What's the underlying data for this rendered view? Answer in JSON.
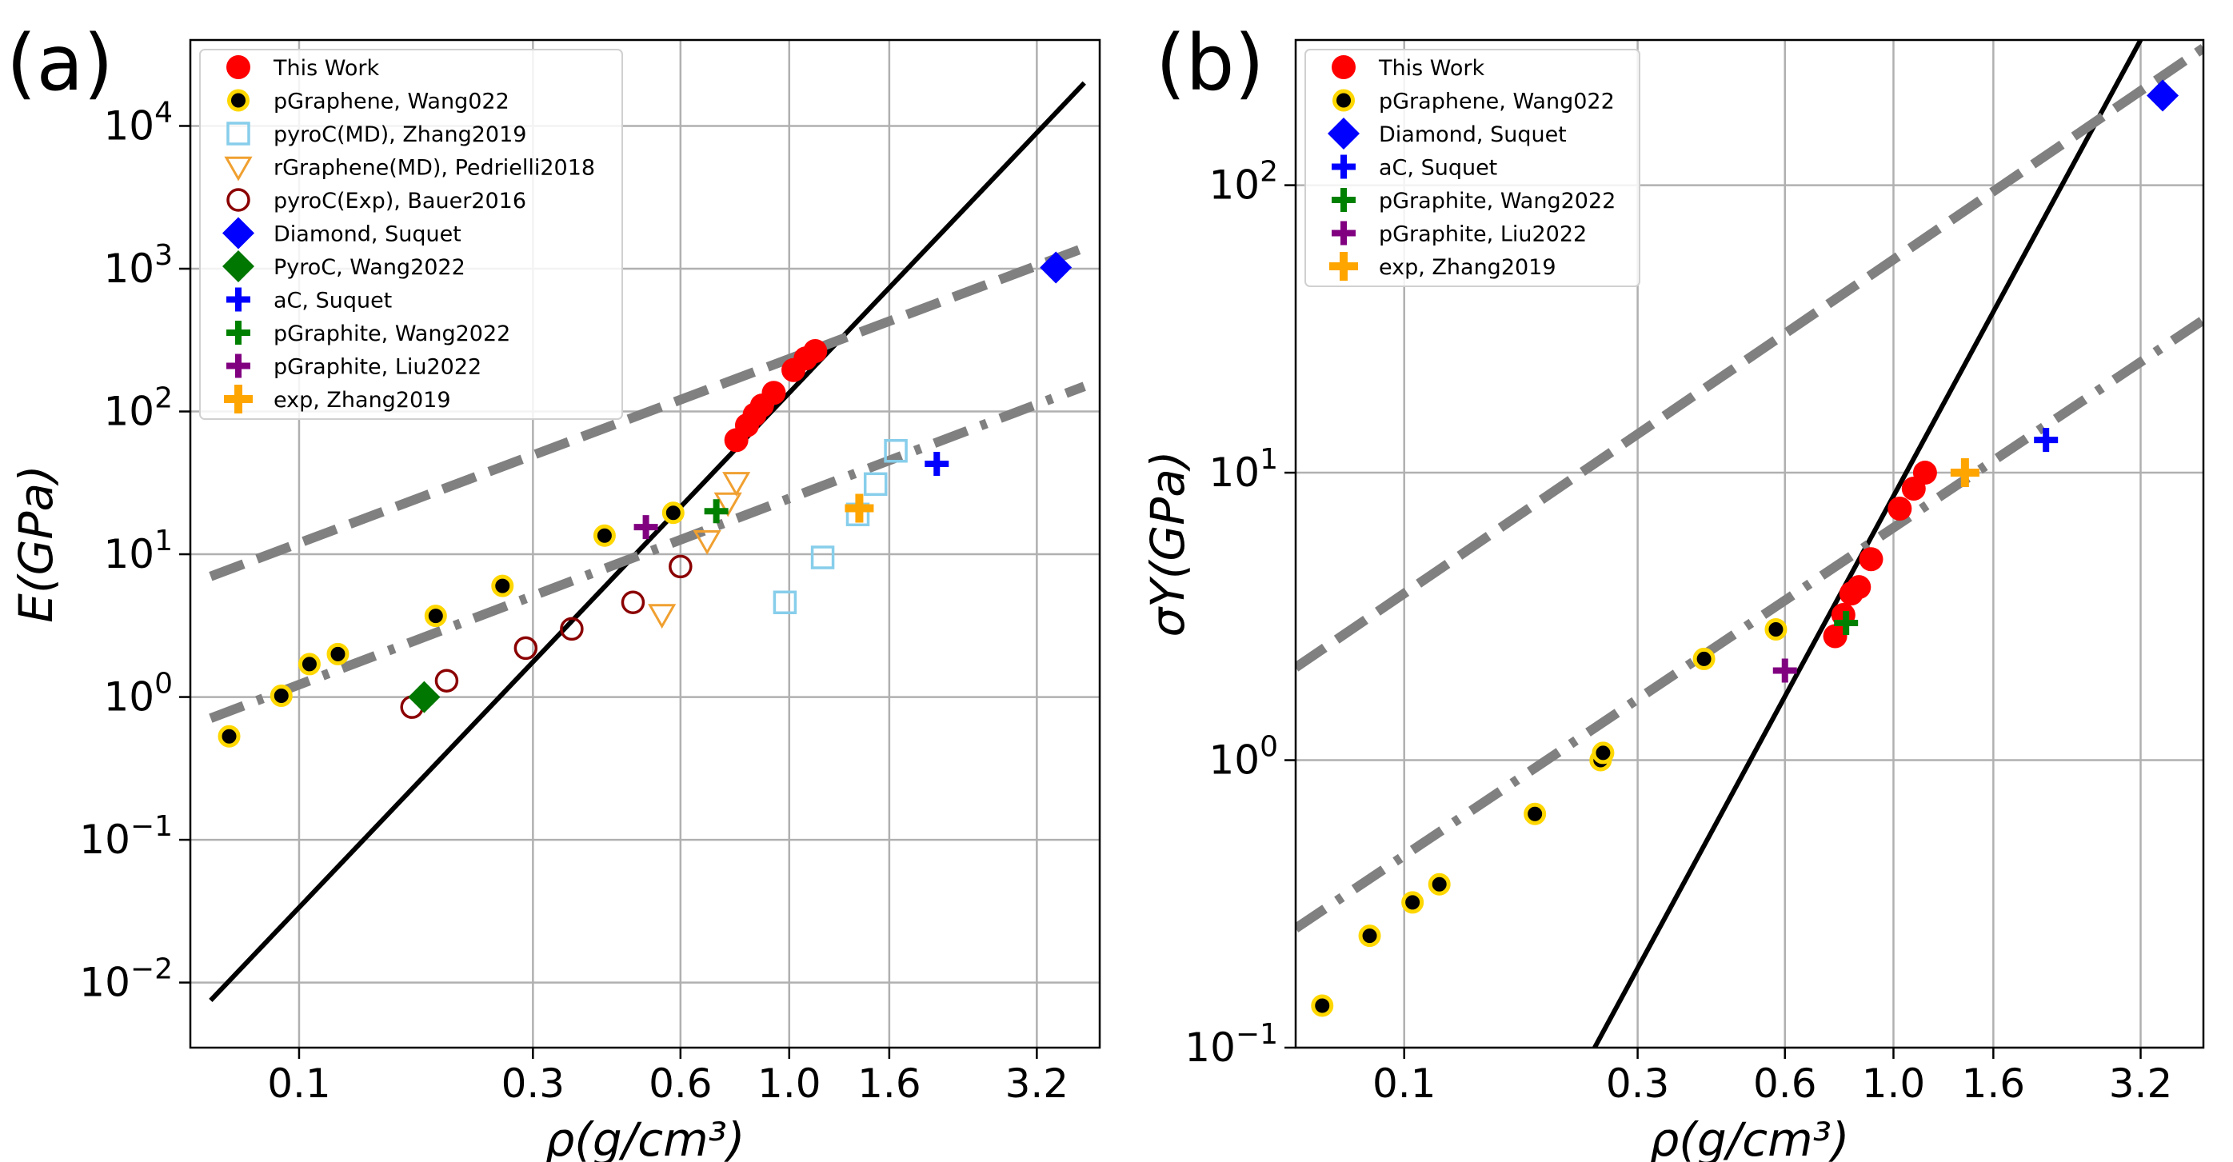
{
  "colors": {
    "this_work": "#ff0000",
    "pgraphene_fill": "#000000",
    "pgraphene_edge": "#ffd700",
    "pyroc_md": "#87ceeb",
    "rgraphene_md": "#f0a030",
    "pyroc_exp": "#8b0000",
    "diamond": "#0000ff",
    "pyroc_wang": "#007700",
    "ac_suquet": "#0000ff",
    "pgraphite_wang": "#008000",
    "pgraphite_liu": "#800080",
    "exp_zhang": "#ffa500",
    "fit": "#808080",
    "grid": "#b0b0b0"
  },
  "chart_data": [
    {
      "panel_label": "(a)",
      "type": "scatter",
      "xscale": "log",
      "yscale": "log",
      "xlim": [
        0.06,
        4.3
      ],
      "ylim": [
        0.0035,
        40000
      ],
      "xlabel": "ρ(g/cm³)",
      "ylabel": "E(GPa)",
      "grid": true,
      "xticks": [
        {
          "value": 0.1,
          "label": "0.1"
        },
        {
          "value": 0.3,
          "label": "0.3"
        },
        {
          "value": 0.6,
          "label": "0.6"
        },
        {
          "value": 1.0,
          "label": "1.0"
        },
        {
          "value": 1.6,
          "label": "1.6"
        },
        {
          "value": 3.2,
          "label": "3.2"
        }
      ],
      "yticks": [
        {
          "value": 0.01,
          "base": "10",
          "exp": "−2"
        },
        {
          "value": 0.1,
          "base": "10",
          "exp": "−1"
        },
        {
          "value": 1,
          "base": "10",
          "exp": "0"
        },
        {
          "value": 10,
          "base": "10",
          "exp": "1"
        },
        {
          "value": 100,
          "base": "10",
          "exp": "2"
        },
        {
          "value": 1000,
          "base": "10",
          "exp": "3"
        },
        {
          "value": 10000,
          "base": "10",
          "exp": "4"
        }
      ],
      "legend_position": "upper-left",
      "series": [
        {
          "name": "This Work",
          "marker": "circle",
          "color_key": "this_work",
          "x": [
            0.78,
            0.82,
            0.85,
            0.88,
            0.93,
            1.02,
            1.08,
            1.13
          ],
          "y": [
            63,
            80,
            95,
            110,
            135,
            195,
            235,
            265
          ]
        },
        {
          "name": "pGraphene, Wang022",
          "marker": "circle-edged",
          "color_key": "pgraphene_fill",
          "x": [
            0.072,
            0.092,
            0.105,
            0.12,
            0.19,
            0.26,
            0.42,
            0.58
          ],
          "y": [
            0.53,
            1.02,
            1.7,
            2.0,
            3.7,
            6.0,
            13.5,
            19.5
          ]
        },
        {
          "name": "pyroC(MD), Zhang2019",
          "marker": "square-open",
          "color_key": "pyroc_md",
          "x": [
            0.98,
            1.17,
            1.38,
            1.5,
            1.65
          ],
          "y": [
            4.6,
            9.5,
            19,
            31,
            53
          ]
        },
        {
          "name": "rGraphene(MD), Pedrielli2018",
          "marker": "triangle-down-open",
          "color_key": "rgraphene_md",
          "x": [
            0.55,
            0.68,
            0.75,
            0.78
          ],
          "y": [
            3.8,
            12.5,
            23,
            32
          ]
        },
        {
          "name": "pyroC(Exp), Bauer2016",
          "marker": "circle-open",
          "color_key": "pyroc_exp",
          "x": [
            0.17,
            0.2,
            0.29,
            0.36,
            0.48,
            0.6
          ],
          "y": [
            0.85,
            1.3,
            2.2,
            3.0,
            4.6,
            8.2
          ]
        },
        {
          "name": "Diamond, Suquet",
          "marker": "diamond",
          "color_key": "diamond",
          "x": [
            3.5
          ],
          "y": [
            1020
          ]
        },
        {
          "name": "PyroC, Wang2022",
          "marker": "diamond",
          "color_key": "pyroc_wang",
          "x": [
            0.18
          ],
          "y": [
            1.0
          ]
        },
        {
          "name": "aC, Suquet",
          "marker": "plus",
          "color_key": "ac_suquet",
          "x": [
            2.0
          ],
          "y": [
            43
          ]
        },
        {
          "name": "pGraphite, Wang2022",
          "marker": "plus",
          "color_key": "pgraphite_wang",
          "x": [
            0.71
          ],
          "y": [
            20
          ]
        },
        {
          "name": "pGraphite, Liu2022",
          "marker": "plus",
          "color_key": "pgraphite_liu",
          "x": [
            0.51
          ],
          "y": [
            15.5
          ]
        },
        {
          "name": "exp, Zhang2019",
          "marker": "plus-large",
          "color_key": "exp_zhang",
          "x": [
            1.39
          ],
          "y": [
            21
          ]
        }
      ],
      "fit_lines": [
        {
          "style": "solid",
          "color_key": "pgraphene_fill",
          "x": [
            0.066,
            4.0
          ],
          "y": [
            0.0075,
            20000
          ]
        },
        {
          "style": "dashed",
          "color_key": "fit",
          "x": [
            0.066,
            4.0
          ],
          "y": [
            7,
            1400
          ]
        },
        {
          "style": "dashdot",
          "color_key": "fit",
          "x": [
            0.066,
            4.0
          ],
          "y": [
            0.71,
            150
          ]
        }
      ]
    },
    {
      "panel_label": "(b)",
      "type": "scatter",
      "xscale": "log",
      "yscale": "log",
      "xlim": [
        0.06,
        4.3
      ],
      "ylim": [
        0.1,
        320
      ],
      "xlabel": "ρ(g/cm³)",
      "ylabel": "σY(GPa)",
      "grid": true,
      "xticks": [
        {
          "value": 0.1,
          "label": "0.1"
        },
        {
          "value": 0.3,
          "label": "0.3"
        },
        {
          "value": 0.6,
          "label": "0.6"
        },
        {
          "value": 1.0,
          "label": "1.0"
        },
        {
          "value": 1.6,
          "label": "1.6"
        },
        {
          "value": 3.2,
          "label": "3.2"
        }
      ],
      "yticks": [
        {
          "value": 0.1,
          "base": "10",
          "exp": "−1"
        },
        {
          "value": 1,
          "base": "10",
          "exp": "0"
        },
        {
          "value": 10,
          "base": "10",
          "exp": "1"
        },
        {
          "value": 100,
          "base": "10",
          "exp": "2"
        }
      ],
      "legend_position": "upper-left",
      "series": [
        {
          "name": "This Work",
          "marker": "circle",
          "color_key": "this_work",
          "x": [
            0.76,
            0.79,
            0.82,
            0.85,
            0.9,
            1.03,
            1.1,
            1.16
          ],
          "y": [
            2.7,
            3.2,
            3.8,
            4.0,
            5.0,
            7.5,
            8.8,
            10
          ]
        },
        {
          "name": "pGraphene, Wang022",
          "marker": "circle-edged",
          "color_key": "pgraphene_fill",
          "x": [
            0.068,
            0.085,
            0.104,
            0.118,
            0.185,
            0.252,
            0.255,
            0.41,
            0.575
          ],
          "y": [
            0.14,
            0.245,
            0.32,
            0.37,
            0.65,
            1.0,
            1.06,
            2.25,
            2.85
          ]
        },
        {
          "name": "Diamond, Suquet",
          "marker": "diamond",
          "color_key": "diamond",
          "x": [
            3.55
          ],
          "y": [
            205
          ]
        },
        {
          "name": "aC, Suquet",
          "marker": "plus",
          "color_key": "ac_suquet",
          "x": [
            2.05
          ],
          "y": [
            13
          ]
        },
        {
          "name": "pGraphite, Wang2022",
          "marker": "plus",
          "color_key": "pgraphite_wang",
          "x": [
            0.8
          ],
          "y": [
            3.0
          ]
        },
        {
          "name": "pGraphite, Liu2022",
          "marker": "plus",
          "color_key": "pgraphite_liu",
          "x": [
            0.6
          ],
          "y": [
            2.05
          ]
        },
        {
          "name": "exp, Zhang2019",
          "marker": "plus-large",
          "color_key": "exp_zhang",
          "x": [
            1.4
          ],
          "y": [
            10
          ]
        }
      ],
      "fit_lines": [
        {
          "style": "solid",
          "color_key": "pgraphene_fill",
          "x": [
            0.245,
            3.2
          ],
          "y": [
            0.1,
            320
          ]
        },
        {
          "style": "dashed",
          "color_key": "fit",
          "x": [
            0.06,
            4.3
          ],
          "y": [
            2.1,
            300
          ]
        },
        {
          "style": "dashdot",
          "color_key": "fit",
          "x": [
            0.06,
            4.3
          ],
          "y": [
            0.26,
            34
          ]
        }
      ]
    }
  ]
}
